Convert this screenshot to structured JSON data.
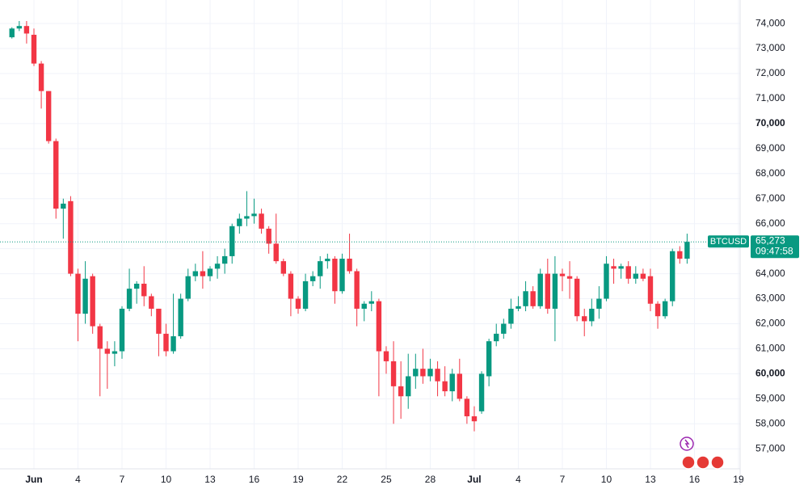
{
  "chart_data": {
    "type": "candlestick",
    "symbol": "BTCUSD",
    "last_price": {
      "value": 65273,
      "label": "65,273"
    },
    "countdown": "09:47:58",
    "up_color": "#089981",
    "down_color": "#f23645",
    "grid": true,
    "categories": [
      null,
      null,
      null,
      "Jun",
      null,
      null,
      null,
      null,
      null,
      "4",
      null,
      null,
      null,
      null,
      null,
      "7",
      null,
      null,
      null,
      null,
      null,
      "10",
      null,
      null,
      null,
      null,
      null,
      "13",
      null,
      null,
      null,
      null,
      null,
      "16",
      null,
      null,
      null,
      null,
      null,
      "19",
      null,
      null,
      null,
      null,
      null,
      "22",
      null,
      null,
      null,
      null,
      null,
      "25",
      null,
      null,
      null,
      null,
      null,
      "28",
      null,
      null,
      null,
      null,
      null,
      "Jul",
      null,
      null,
      null,
      null,
      null,
      "4",
      null,
      null,
      null,
      null,
      null,
      "7",
      null,
      null,
      null,
      null,
      null,
      "10",
      null,
      null,
      null,
      null,
      null,
      "13",
      null,
      null,
      null,
      null,
      null,
      "16",
      null,
      null,
      null,
      null,
      null,
      "19"
    ],
    "open": [
      73450,
      73800,
      73900,
      73550,
      72400,
      71300,
      69300,
      66600,
      66900,
      64000,
      62400,
      63900,
      61900,
      61000,
      60800,
      60900,
      62600,
      63400,
      63600,
      63100,
      62600,
      61600,
      60900,
      61500,
      63000,
      63900,
      64100,
      63900,
      64200,
      64400,
      64700,
      65900,
      66200,
      66300,
      66400,
      65800,
      65200,
      64500,
      64000,
      63000,
      62600,
      63700,
      63900,
      64500,
      64600,
      63300,
      64600,
      64100,
      62600,
      62800,
      62900,
      60900,
      60500,
      59500,
      59100,
      59900,
      60200,
      59900,
      60200,
      59700,
      59300,
      60000,
      59000,
      58300,
      58500,
      59900,
      61300,
      61600,
      62000,
      62600,
      62700,
      63300,
      62700,
      64000,
      62600,
      64000,
      63900,
      63800,
      62300,
      62100,
      62600,
      63000,
      64300,
      64200,
      64300,
      63800,
      64000,
      63900,
      62800,
      62300,
      62900,
      64900,
      64600,
      null,
      null,
      null,
      null,
      null,
      null,
      null
    ],
    "high": [
      73850,
      74100,
      74100,
      73800,
      72500,
      71300,
      69400,
      67000,
      67100,
      64200,
      64500,
      64000,
      62000,
      61300,
      61300,
      62700,
      64200,
      63700,
      64300,
      63200,
      62600,
      62000,
      63200,
      63200,
      64200,
      64400,
      64900,
      64300,
      64700,
      65000,
      66000,
      66400,
      67300,
      67000,
      66600,
      65900,
      66400,
      64600,
      64100,
      63100,
      64000,
      64100,
      64700,
      64800,
      64700,
      64800,
      65600,
      64200,
      62900,
      63300,
      63000,
      61100,
      61300,
      60500,
      60800,
      60800,
      61000,
      60600,
      60500,
      60300,
      60200,
      60600,
      59100,
      58700,
      60100,
      61400,
      62000,
      62200,
      63000,
      63100,
      63700,
      63500,
      64200,
      64600,
      64700,
      64200,
      64500,
      63900,
      62600,
      63000,
      63500,
      64700,
      64600,
      64400,
      64500,
      64300,
      64200,
      64200,
      62900,
      63000,
      65000,
      65100,
      65600,
      null,
      null,
      null,
      null,
      null,
      null,
      null
    ],
    "low": [
      73400,
      73700,
      73200,
      72300,
      70600,
      69200,
      66200,
      65400,
      63900,
      61300,
      62000,
      61600,
      59100,
      59400,
      60300,
      60600,
      62500,
      62800,
      62700,
      62300,
      60700,
      60700,
      60800,
      61400,
      62900,
      63700,
      63400,
      63700,
      63800,
      64000,
      64400,
      65600,
      65900,
      66000,
      65600,
      64800,
      64400,
      63900,
      62300,
      62400,
      62500,
      63500,
      63400,
      64200,
      62800,
      63200,
      64000,
      61900,
      62100,
      62500,
      59100,
      60000,
      58000,
      58200,
      58600,
      59400,
      59600,
      59700,
      59100,
      59100,
      58900,
      58900,
      58000,
      57700,
      58400,
      59500,
      61100,
      61400,
      61800,
      62500,
      62500,
      62600,
      62600,
      62400,
      61300,
      63300,
      63000,
      62100,
      61500,
      61900,
      62200,
      62900,
      63600,
      63800,
      63600,
      63600,
      63700,
      62500,
      61800,
      62200,
      62700,
      64400,
      64400,
      null,
      null,
      null,
      null,
      null,
      null,
      null
    ],
    "close": [
      73800,
      73900,
      73600,
      72400,
      71300,
      69300,
      66600,
      66800,
      64000,
      62400,
      63800,
      61900,
      61000,
      60800,
      60900,
      62600,
      63400,
      63600,
      63100,
      62600,
      61600,
      60900,
      61500,
      63000,
      63900,
      64100,
      63900,
      64200,
      64400,
      64700,
      65900,
      66200,
      66300,
      66400,
      65800,
      65200,
      64500,
      64000,
      63000,
      62600,
      63700,
      63900,
      64500,
      64600,
      63300,
      64600,
      64100,
      62600,
      62800,
      62900,
      60900,
      60500,
      59500,
      59100,
      59900,
      60200,
      59900,
      60200,
      59700,
      59300,
      60000,
      59000,
      58300,
      58100,
      60000,
      61300,
      61600,
      62000,
      62600,
      62700,
      63300,
      62700,
      64000,
      62600,
      64000,
      63900,
      63800,
      62300,
      62100,
      62600,
      63000,
      64400,
      64200,
      64300,
      63800,
      64000,
      63800,
      62800,
      62300,
      62900,
      64900,
      64600,
      65273,
      null,
      null,
      null,
      null,
      null,
      null,
      null
    ],
    "ylim": [
      56200,
      74940
    ],
    "yticks": [
      {
        "value": 57000,
        "label": "57,000"
      },
      {
        "value": 58000,
        "label": "58,000"
      },
      {
        "value": 59000,
        "label": "59,000"
      },
      {
        "value": 60000,
        "label": "60,000",
        "bold": true
      },
      {
        "value": 61000,
        "label": "61,000"
      },
      {
        "value": 62000,
        "label": "62,000"
      },
      {
        "value": 63000,
        "label": "63,000"
      },
      {
        "value": 64000,
        "label": "64,000"
      },
      {
        "value": 65000,
        "label": "65,000"
      },
      {
        "value": 66000,
        "label": "66,000"
      },
      {
        "value": 67000,
        "label": "67,000"
      },
      {
        "value": 68000,
        "label": "68,000"
      },
      {
        "value": 69000,
        "label": "69,000"
      },
      {
        "value": 70000,
        "label": "70,000",
        "bold": true
      },
      {
        "value": 71000,
        "label": "71,000"
      },
      {
        "value": 72000,
        "label": "72,000"
      },
      {
        "value": 73000,
        "label": "73,000"
      },
      {
        "value": 74000,
        "label": "74,000"
      }
    ]
  }
}
